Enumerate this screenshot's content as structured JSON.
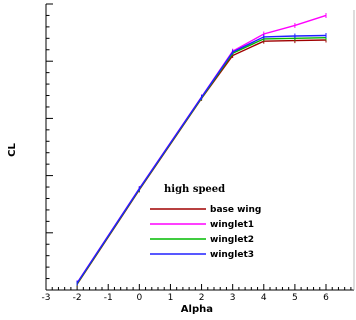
{
  "chart_data": {
    "type": "line",
    "xlabel": "Alpha",
    "ylabel": "CL",
    "xlim": [
      -3,
      6.9
    ],
    "ylim": [
      0,
      1
    ],
    "x_ticks": [
      -3,
      -2,
      -1,
      0,
      1,
      2,
      3,
      4,
      5,
      6
    ],
    "grid": false,
    "legend": {
      "title": "high speed",
      "placement": "bottom-right"
    },
    "series": [
      {
        "name": "base wing",
        "color": "#a00000",
        "x": [
          -2,
          0,
          2,
          3,
          4,
          5,
          6
        ],
        "y": [
          0.02,
          0.35,
          0.67,
          0.82,
          0.87,
          0.872,
          0.874
        ]
      },
      {
        "name": "winglet1",
        "color": "#ff00ff",
        "x": [
          -2,
          0,
          2,
          3,
          4,
          5,
          6
        ],
        "y": [
          0.025,
          0.355,
          0.675,
          0.835,
          0.895,
          0.925,
          0.96
        ]
      },
      {
        "name": "winglet2",
        "color": "#00bb00",
        "x": [
          -2,
          0,
          2,
          3,
          4,
          5,
          6
        ],
        "y": [
          0.022,
          0.352,
          0.672,
          0.828,
          0.878,
          0.88,
          0.882
        ]
      },
      {
        "name": "winglet3",
        "color": "#2020ff",
        "x": [
          -2,
          0,
          2,
          3,
          4,
          5,
          6
        ],
        "y": [
          0.024,
          0.354,
          0.674,
          0.832,
          0.885,
          0.888,
          0.89
        ]
      }
    ]
  }
}
